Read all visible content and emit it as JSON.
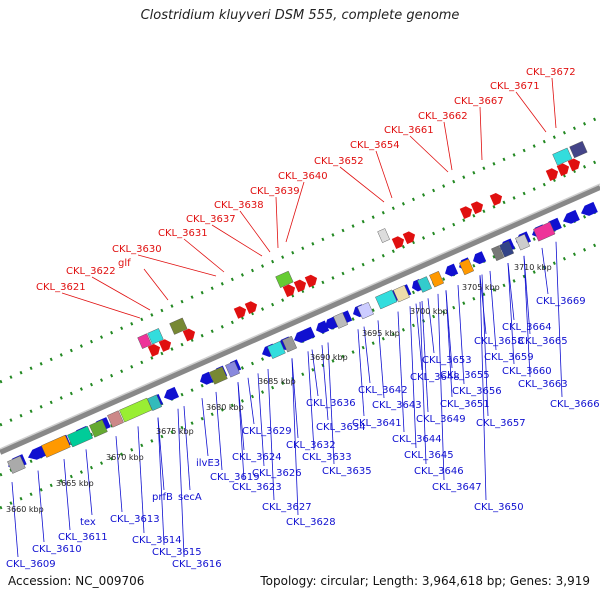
{
  "title": "Clostridium kluyveri DSM 555, complete genome",
  "accession_label": "Accession: NC_009706",
  "summary_label": "Topology: circular; Length: 3,964,618 bp; Genes: 3,919",
  "colors": {
    "upper_label": "#e01010",
    "lower_label": "#1010d0",
    "forward_gene": "#e01010",
    "reverse_gene": "#1010d0",
    "backbone": "#888888",
    "ticks": "#228822"
  },
  "kbp_ticks": [
    "3660 kbp",
    "3665 kbp",
    "3670 kbp",
    "3675 kbp",
    "3680 kbp",
    "3685 kbp",
    "3690 kbp",
    "3695 kbp",
    "3700 kbp",
    "3705 kbp",
    "3710 kbp"
  ],
  "upper_labels": [
    "CKL_3621",
    "CKL_3622",
    "glf",
    "CKL_3630",
    "CKL_3631",
    "CKL_3637",
    "CKL_3638",
    "CKL_3639",
    "CKL_3640",
    "CKL_3652",
    "CKL_3654",
    "CKL_3661",
    "CKL_3662",
    "CKL_3667",
    "CKL_3671",
    "CKL_3672"
  ],
  "lower_labels": [
    "CKL_3609",
    "CKL_3610",
    "CKL_3611",
    "tex",
    "CKL_3613",
    "CKL_3614",
    "CKL_3615",
    "CKL_3616",
    "prfB",
    "secA",
    "ilvE3",
    "CKL_3619",
    "CKL_3623",
    "CKL_3624",
    "CKL_3626",
    "CKL_3627",
    "CKL_3628",
    "CKL_3629",
    "CKL_3632",
    "CKL_3633",
    "CKL_3634",
    "CKL_3635",
    "CKL_3636",
    "CKL_3641",
    "CKL_3642",
    "CKL_3643",
    "CKL_3644",
    "CKL_3645",
    "CKL_3646",
    "CKL_3647",
    "CKL_3648",
    "CKL_3649",
    "CKL_3650",
    "CKL_3651",
    "CKL_3653",
    "CKL_3655",
    "CKL_3656",
    "CKL_3657",
    "CKL_3658",
    "CKL_3659",
    "CKL_3660",
    "CKL_3663",
    "CKL_3664",
    "CKL_3665",
    "CKL_3666",
    "CKL_3669"
  ]
}
